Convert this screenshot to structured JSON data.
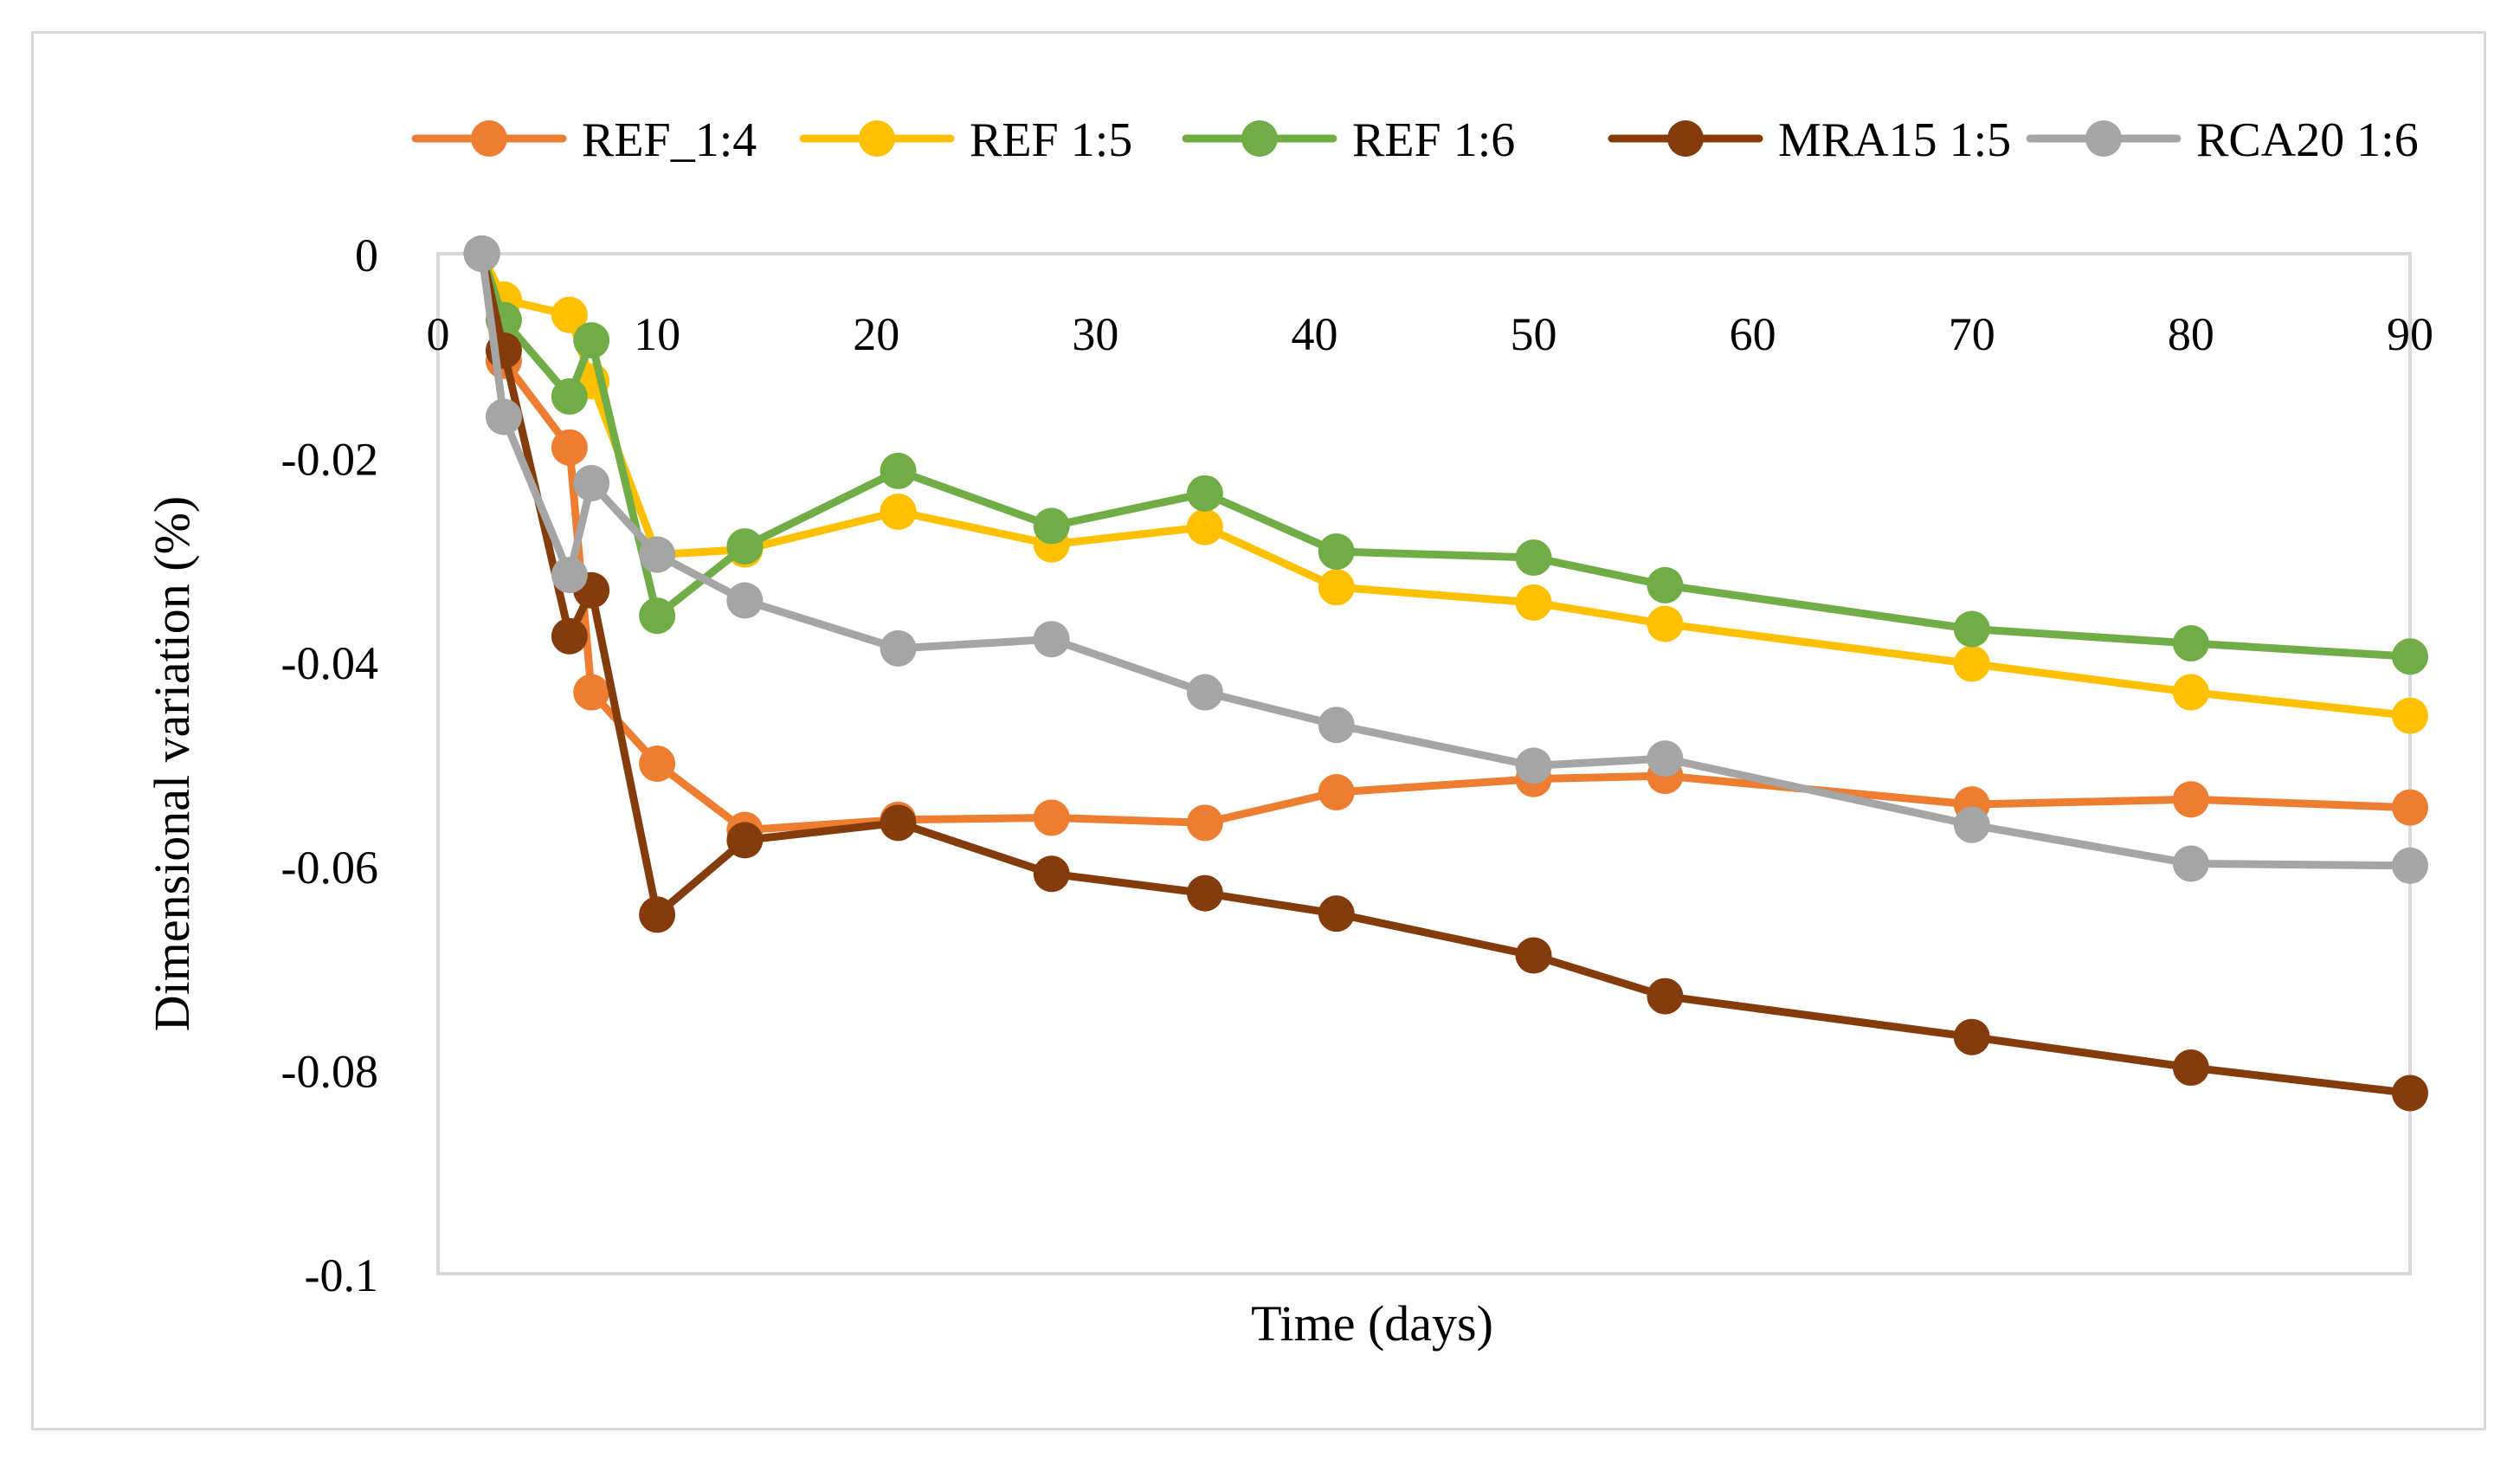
{
  "chart_data": {
    "type": "line",
    "title": "",
    "xlabel": "Time (days)",
    "ylabel": "Dimensional variation (%)",
    "xlim": [
      0,
      90
    ],
    "ylim": [
      -0.1,
      0
    ],
    "xticks": [
      0,
      10,
      20,
      30,
      40,
      50,
      60,
      70,
      80,
      90
    ],
    "yticks": [
      0,
      -0.02,
      -0.04,
      -0.06,
      -0.08,
      -0.1
    ],
    "xtick_labels": [
      "0",
      "10",
      "20",
      "30",
      "40",
      "50",
      "60",
      "70",
      "80",
      "90"
    ],
    "ytick_labels": [
      "0",
      "-0.02",
      "-0.04",
      "-0.06",
      "-0.08",
      "-0.1"
    ],
    "grid": false,
    "legend_position": "top",
    "series": [
      {
        "name": "REF_1:4",
        "color": "#ED7D31",
        "x": [
          2,
          3,
          6,
          7,
          10,
          14,
          21,
          28,
          35,
          41,
          50,
          56,
          70,
          80,
          90
        ],
        "y": [
          0,
          -0.0105,
          -0.019,
          -0.043,
          -0.05,
          -0.0565,
          -0.0555,
          -0.0553,
          -0.0558,
          -0.0528,
          -0.0515,
          -0.0512,
          -0.054,
          -0.0535,
          -0.0543
        ]
      },
      {
        "name": "REF 1:5",
        "color": "#FFC000",
        "x": [
          2,
          3,
          6,
          7,
          10,
          14,
          21,
          28,
          35,
          41,
          50,
          56,
          70,
          80,
          90
        ],
        "y": [
          0,
          -0.0045,
          -0.006,
          -0.0125,
          -0.0295,
          -0.029,
          -0.0253,
          -0.0285,
          -0.0268,
          -0.0327,
          -0.0342,
          -0.0363,
          -0.0402,
          -0.043,
          -0.0453
        ]
      },
      {
        "name": "REF 1:6",
        "color": "#70AD47",
        "x": [
          2,
          3,
          6,
          7,
          10,
          14,
          21,
          28,
          35,
          41,
          50,
          56,
          70,
          80,
          90
        ],
        "y": [
          0,
          -0.0065,
          -0.014,
          -0.0085,
          -0.0355,
          -0.0287,
          -0.0213,
          -0.0267,
          -0.0235,
          -0.0292,
          -0.0298,
          -0.0325,
          -0.0368,
          -0.0382,
          -0.0395
        ]
      },
      {
        "name": "MRA15 1:5",
        "color": "#843C0C",
        "x": [
          2,
          3,
          6,
          7,
          10,
          14,
          21,
          28,
          35,
          41,
          50,
          56,
          70,
          80,
          90
        ],
        "y": [
          0,
          -0.0095,
          -0.0375,
          -0.033,
          -0.0648,
          -0.0575,
          -0.0558,
          -0.0608,
          -0.0627,
          -0.0647,
          -0.0688,
          -0.0728,
          -0.0768,
          -0.0798,
          -0.0823
        ]
      },
      {
        "name": "RCA20 1:6",
        "color": "#A5A5A5",
        "x": [
          2,
          3,
          6,
          7,
          10,
          14,
          21,
          28,
          35,
          41,
          50,
          56,
          70,
          80,
          90
        ],
        "y": [
          0,
          -0.016,
          -0.0315,
          -0.0225,
          -0.0295,
          -0.034,
          -0.0387,
          -0.0378,
          -0.043,
          -0.0462,
          -0.0502,
          -0.0495,
          -0.056,
          -0.0598,
          -0.06
        ]
      }
    ]
  }
}
